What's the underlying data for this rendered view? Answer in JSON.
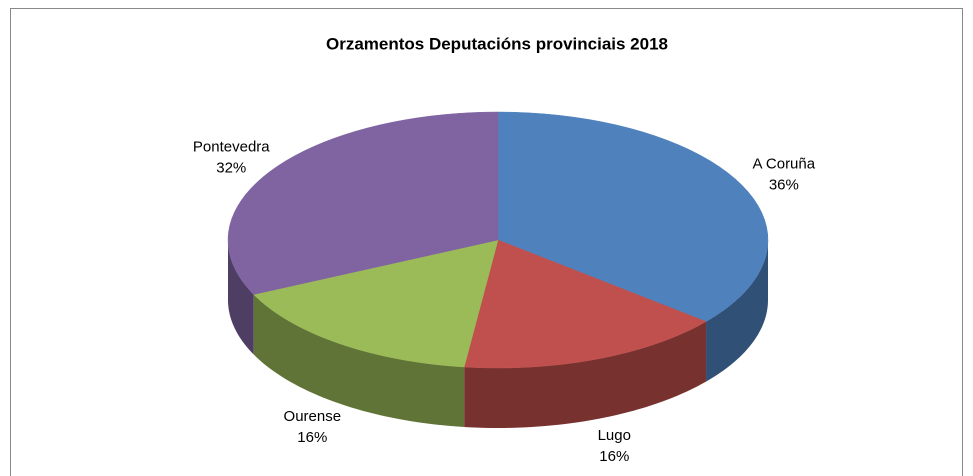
{
  "chart_data": {
    "type": "pie",
    "title": "Orzamentos Deputacións provinciais  2018",
    "categories": [
      "A Coruña",
      "Lugo",
      "Ourense",
      "Pontevedra"
    ],
    "values": [
      36,
      16,
      16,
      32
    ],
    "value_labels": [
      "36%",
      "16%",
      "16%",
      "32%"
    ],
    "colors": [
      "#4f81bd",
      "#c0504d",
      "#9bbb59",
      "#8064a2"
    ]
  }
}
